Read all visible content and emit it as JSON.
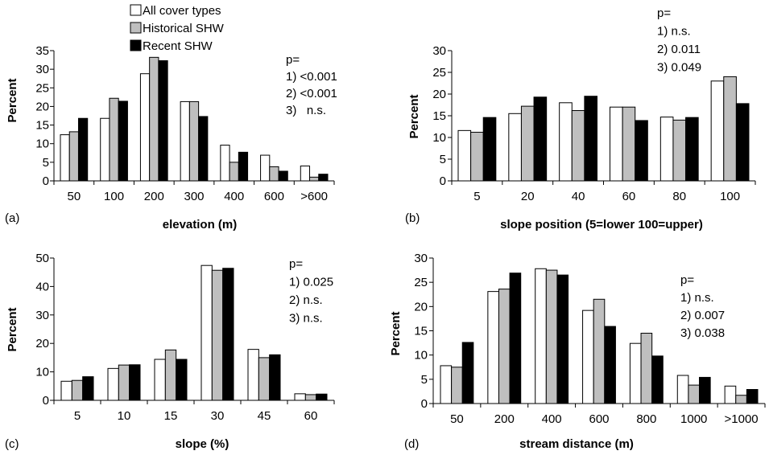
{
  "figure": {
    "colors": {
      "all_cover": "#ffffff",
      "historical": "#bfbfbf",
      "recent": "#000000",
      "outline": "#000000"
    }
  },
  "legend": {
    "entries": [
      "All cover types",
      "Historical SHW",
      "Recent SHW"
    ]
  },
  "chart_data": [
    {
      "panel_label": "(a)",
      "type": "bar",
      "xlabel": "elevation (m)",
      "ylabel": "Percent",
      "ylim": [
        0,
        35
      ],
      "yticks": [
        0,
        5,
        10,
        15,
        20,
        25,
        30,
        35
      ],
      "categories": [
        "50",
        "100",
        "200",
        "300",
        "400",
        "600",
        ">600"
      ],
      "series": [
        {
          "name": "All cover types",
          "values": [
            12.4,
            16.8,
            28.8,
            21.3,
            9.6,
            6.9,
            4.0
          ]
        },
        {
          "name": "Historical SHW",
          "values": [
            13.2,
            22.2,
            33.2,
            21.3,
            5.0,
            3.8,
            1.0
          ]
        },
        {
          "name": "Recent SHW",
          "values": [
            16.8,
            21.4,
            32.3,
            17.3,
            7.7,
            2.6,
            1.8
          ]
        }
      ],
      "annotation": [
        "p=",
        "1) <0.001",
        "2) <0.001",
        "3)   n.s."
      ]
    },
    {
      "panel_label": "(b)",
      "type": "bar",
      "xlabel": "slope position (5=lower 100=upper)",
      "ylabel": "Percent",
      "ylim": [
        0,
        30
      ],
      "yticks": [
        0,
        5,
        10,
        15,
        20,
        25,
        30
      ],
      "categories": [
        "5",
        "20",
        "40",
        "60",
        "80",
        "100"
      ],
      "series": [
        {
          "name": "All cover types",
          "values": [
            11.6,
            15.5,
            18.0,
            17.0,
            14.7,
            23.0
          ]
        },
        {
          "name": "Historical SHW",
          "values": [
            11.2,
            17.2,
            16.2,
            17.0,
            14.0,
            24.0
          ]
        },
        {
          "name": "Recent SHW",
          "values": [
            14.6,
            19.3,
            19.5,
            13.9,
            14.6,
            17.8
          ]
        }
      ],
      "annotation": [
        "p=",
        "1) n.s.",
        "2) 0.011",
        "3) 0.049"
      ]
    },
    {
      "panel_label": "(c)",
      "type": "bar",
      "xlabel": "slope (%)",
      "ylabel": "Percent",
      "ylim": [
        0,
        50
      ],
      "yticks": [
        0,
        10,
        20,
        30,
        40,
        50
      ],
      "categories": [
        "5",
        "10",
        "15",
        "30",
        "45",
        "60"
      ],
      "series": [
        {
          "name": "All cover types",
          "values": [
            6.7,
            11.2,
            14.4,
            47.4,
            17.9,
            2.3
          ]
        },
        {
          "name": "Historical SHW",
          "values": [
            7.0,
            12.4,
            17.7,
            45.7,
            15.0,
            2.0
          ]
        },
        {
          "name": "Recent SHW",
          "values": [
            8.3,
            12.5,
            14.4,
            46.4,
            16.0,
            2.2
          ]
        }
      ],
      "annotation": [
        "p=",
        "1) 0.025",
        "2) n.s.",
        "3) n.s."
      ]
    },
    {
      "panel_label": "(d)",
      "type": "bar",
      "xlabel": "stream distance (m)",
      "ylabel": "Percent",
      "ylim": [
        0,
        30
      ],
      "yticks": [
        0,
        5,
        10,
        15,
        20,
        25,
        30
      ],
      "categories": [
        "50",
        "200",
        "400",
        "600",
        "800",
        "1000",
        ">1000"
      ],
      "series": [
        {
          "name": "All cover types",
          "values": [
            7.8,
            23.1,
            27.8,
            19.2,
            12.4,
            5.8,
            3.6
          ]
        },
        {
          "name": "Historical SHW",
          "values": [
            7.5,
            23.6,
            27.5,
            21.5,
            14.5,
            3.8,
            1.7
          ]
        },
        {
          "name": "Recent SHW",
          "values": [
            12.6,
            26.9,
            26.5,
            15.9,
            9.8,
            5.4,
            2.9
          ]
        }
      ],
      "annotation": [
        "p=",
        "1) n.s.",
        "2) 0.007",
        "3) 0.038"
      ]
    }
  ]
}
